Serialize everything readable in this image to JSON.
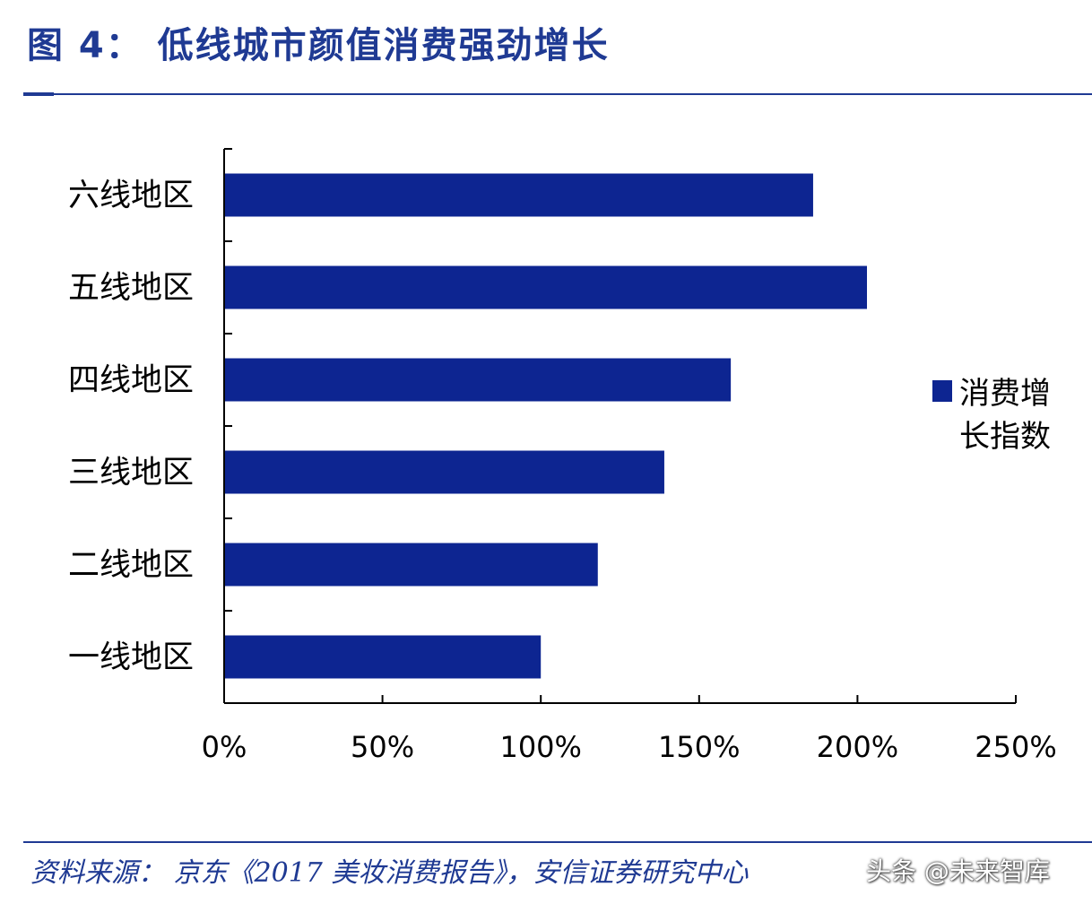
{
  "header": {
    "title": "图 4：  低线城市颜值消费强劲增长"
  },
  "footer": {
    "source": "资料来源：  京东《2017 美妆消费报告》，安信证券研究中心",
    "watermark": "头条 @未来智库"
  },
  "chart_data": {
    "type": "bar",
    "orientation": "horizontal",
    "categories": [
      "六线地区",
      "五线地区",
      "四线地区",
      "三线地区",
      "二线地区",
      "一线地区"
    ],
    "series": [
      {
        "name": "消费增长指数",
        "values": [
          1.86,
          2.03,
          1.6,
          1.39,
          1.18,
          1.0
        ],
        "color": "#0d2591"
      }
    ],
    "xlim": [
      0,
      2.5
    ],
    "xticks": [
      0,
      0.5,
      1.0,
      1.5,
      2.0,
      2.5
    ],
    "xtick_labels": [
      "0%",
      "50%",
      "100%",
      "150%",
      "200%",
      "250%"
    ],
    "legend": {
      "position": "right",
      "lines": [
        "消费增",
        "长指数"
      ]
    },
    "grid": false
  }
}
